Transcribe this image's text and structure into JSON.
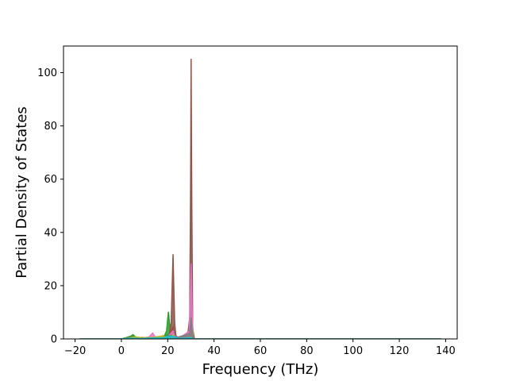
{
  "chart_data": {
    "type": "area",
    "xlabel": "Frequency (THz)",
    "ylabel": "Partial Density of States",
    "xlim": [
      -25,
      145
    ],
    "ylim": [
      0,
      110
    ],
    "x_ticks": [
      -20,
      0,
      20,
      40,
      60,
      80,
      100,
      120,
      140
    ],
    "y_ticks": [
      0,
      20,
      40,
      60,
      80,
      100
    ],
    "x_tick_labels": [
      "−20",
      "0",
      "20",
      "40",
      "60",
      "80",
      "100",
      "120",
      "140"
    ],
    "y_tick_labels": [
      "0",
      "20",
      "40",
      "60",
      "80",
      "100"
    ],
    "grid": false,
    "colors": [
      "#1f77b4",
      "#ff7f0e",
      "#2ca02c",
      "#d62728",
      "#9467bd",
      "#8c564b",
      "#e377c2",
      "#7f7f7f",
      "#bcbd22",
      "#17becf"
    ],
    "series": [
      {
        "points": [
          [
            -18,
            0
          ],
          [
            0,
            0
          ],
          [
            3,
            0.3
          ],
          [
            5,
            0.8
          ],
          [
            8,
            0.2
          ],
          [
            12,
            0.5
          ],
          [
            15,
            0.8
          ],
          [
            18,
            1.0
          ],
          [
            20,
            1.5
          ],
          [
            21,
            0.5
          ],
          [
            22,
            2.0
          ],
          [
            23,
            1.5
          ],
          [
            25,
            0.2
          ],
          [
            28,
            0.5
          ],
          [
            29.5,
            5
          ],
          [
            30,
            18.5
          ],
          [
            30.5,
            6
          ],
          [
            31,
            0
          ],
          [
            138,
            0
          ]
        ]
      },
      {
        "points": [
          [
            -18,
            0
          ],
          [
            0,
            0
          ],
          [
            2,
            0.3
          ],
          [
            4,
            0.8
          ],
          [
            6,
            0.4
          ],
          [
            9,
            0.6
          ],
          [
            12,
            0.3
          ],
          [
            16,
            0.8
          ],
          [
            18,
            1.2
          ],
          [
            19,
            0.8
          ],
          [
            20,
            0.3
          ],
          [
            21.5,
            1.0
          ],
          [
            22.3,
            3.5
          ],
          [
            23,
            1.0
          ],
          [
            25,
            0.2
          ],
          [
            29.5,
            1.0
          ],
          [
            30,
            2.0
          ],
          [
            30.5,
            1.0
          ],
          [
            31,
            0
          ],
          [
            138,
            0
          ]
        ]
      },
      {
        "points": [
          [
            -18,
            0
          ],
          [
            0,
            0
          ],
          [
            2,
            0.5
          ],
          [
            4,
            1.0
          ],
          [
            5,
            1.6
          ],
          [
            6,
            0.8
          ],
          [
            8,
            0.3
          ],
          [
            11,
            0.4
          ],
          [
            14,
            0.2
          ],
          [
            17,
            0.5
          ],
          [
            18.5,
            1.0
          ],
          [
            19.5,
            3.0
          ],
          [
            20.3,
            10.2
          ],
          [
            21,
            4.0
          ],
          [
            21.8,
            0.6
          ],
          [
            22.5,
            1.2
          ],
          [
            23,
            0.5
          ],
          [
            25,
            0.1
          ],
          [
            30,
            1.0
          ],
          [
            31,
            0
          ],
          [
            138,
            0
          ]
        ]
      },
      {
        "points": [
          [
            -18,
            0
          ],
          [
            0,
            0
          ],
          [
            3,
            0.2
          ],
          [
            6,
            0.5
          ],
          [
            10,
            0.3
          ],
          [
            14,
            0.2
          ],
          [
            18,
            0.6
          ],
          [
            20,
            0.4
          ],
          [
            22.3,
            4.5
          ],
          [
            23,
            1.0
          ],
          [
            25,
            0.1
          ],
          [
            30,
            0.5
          ],
          [
            31,
            0
          ],
          [
            138,
            0
          ]
        ]
      },
      {
        "points": [
          [
            -18,
            0
          ],
          [
            0,
            0
          ],
          [
            4,
            0.4
          ],
          [
            8,
            0.3
          ],
          [
            12,
            0.2
          ],
          [
            18,
            0.5
          ],
          [
            20,
            0.8
          ],
          [
            22.3,
            2.5
          ],
          [
            23,
            0.5
          ],
          [
            30,
            1.5
          ],
          [
            31,
            0
          ],
          [
            138,
            0
          ]
        ]
      },
      {
        "points": [
          [
            -18,
            0
          ],
          [
            0,
            0
          ],
          [
            2,
            0.2
          ],
          [
            5,
            0.8
          ],
          [
            8,
            0.3
          ],
          [
            12,
            0.4
          ],
          [
            16,
            0.5
          ],
          [
            19,
            0.8
          ],
          [
            20.5,
            1.0
          ],
          [
            21.5,
            6.0
          ],
          [
            22.3,
            31.8
          ],
          [
            23,
            6.0
          ],
          [
            23.6,
            0.5
          ],
          [
            25,
            0.2
          ],
          [
            28.5,
            0.5
          ],
          [
            29.5,
            8.0
          ],
          [
            29.9,
            60.0
          ],
          [
            30.1,
            105.2
          ],
          [
            30.4,
            50.0
          ],
          [
            30.8,
            4.0
          ],
          [
            31.5,
            0
          ],
          [
            138,
            0
          ]
        ]
      },
      {
        "points": [
          [
            -18,
            0
          ],
          [
            0,
            0
          ],
          [
            2,
            0.2
          ],
          [
            5,
            0.5
          ],
          [
            9,
            0.3
          ],
          [
            12,
            0.8
          ],
          [
            13.5,
            2.2
          ],
          [
            14.5,
            0.8
          ],
          [
            17,
            0.4
          ],
          [
            20,
            0.8
          ],
          [
            22.3,
            3.0
          ],
          [
            23,
            1.0
          ],
          [
            25,
            0.2
          ],
          [
            29.3,
            3.0
          ],
          [
            29.9,
            20.0
          ],
          [
            30.1,
            28.3
          ],
          [
            30.5,
            12.0
          ],
          [
            31,
            0
          ],
          [
            138,
            0
          ]
        ]
      },
      {
        "points": [
          [
            -18,
            0
          ],
          [
            0,
            0
          ],
          [
            4,
            0.2
          ],
          [
            10,
            0.2
          ],
          [
            16,
            0.3
          ],
          [
            22.3,
            1.5
          ],
          [
            23,
            0.3
          ],
          [
            29.5,
            2.0
          ],
          [
            30.1,
            8.0
          ],
          [
            30.6,
            2.0
          ],
          [
            31,
            0
          ],
          [
            138,
            0
          ]
        ]
      },
      {
        "points": [
          [
            -18,
            0
          ],
          [
            0,
            0
          ],
          [
            3,
            0.3
          ],
          [
            6,
            0.8
          ],
          [
            9,
            0.4
          ],
          [
            14,
            0.6
          ],
          [
            17,
            1.0
          ],
          [
            19,
            0.8
          ],
          [
            21,
            0.5
          ],
          [
            22.3,
            1.5
          ],
          [
            23,
            0.4
          ],
          [
            25,
            0.1
          ],
          [
            30,
            0.6
          ],
          [
            31,
            0
          ],
          [
            138,
            0
          ]
        ]
      },
      {
        "points": [
          [
            -18,
            0
          ],
          [
            0,
            0
          ],
          [
            4,
            0.3
          ],
          [
            8,
            0.2
          ],
          [
            12,
            0.3
          ],
          [
            18,
            0.4
          ],
          [
            20.3,
            1.0
          ],
          [
            22.3,
            1.0
          ],
          [
            25,
            0.1
          ],
          [
            30,
            0.5
          ],
          [
            31,
            0
          ],
          [
            138,
            0
          ]
        ]
      }
    ]
  }
}
